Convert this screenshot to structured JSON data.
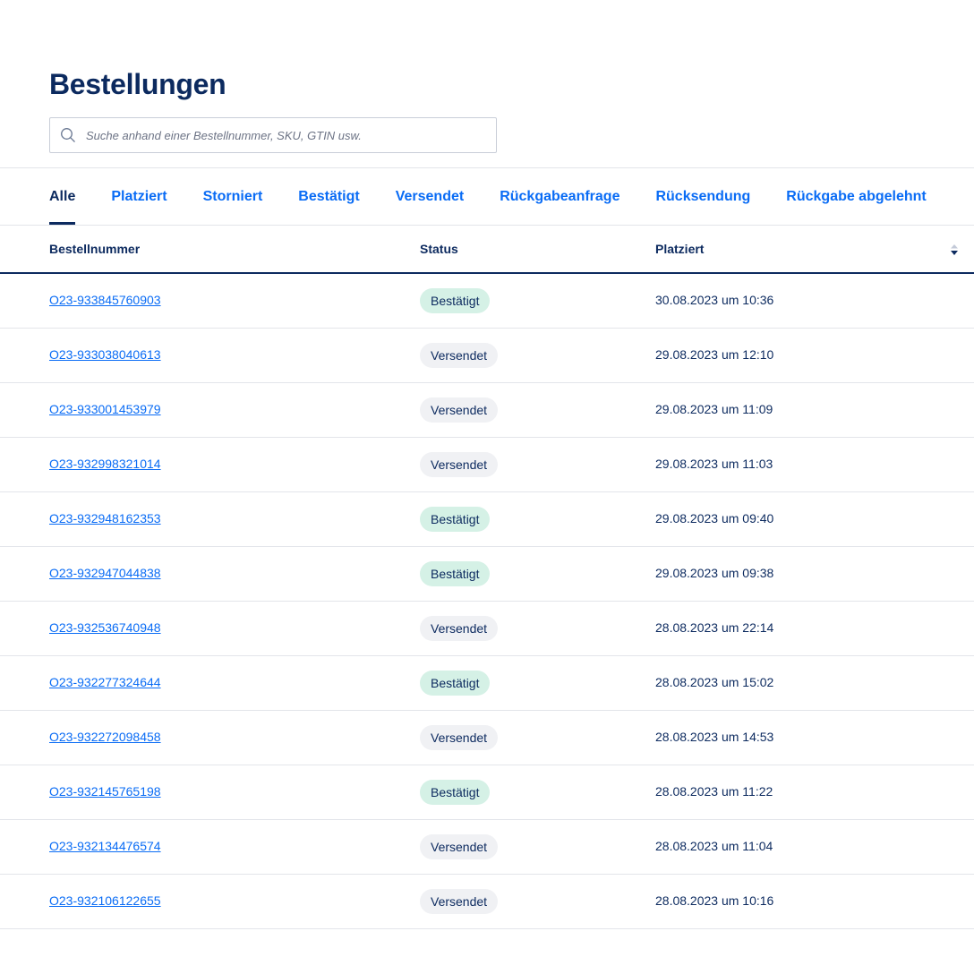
{
  "header": {
    "title": "Bestellungen"
  },
  "search": {
    "placeholder": "Suche anhand einer Bestellnummer, SKU, GTIN usw.",
    "value": ""
  },
  "tabs": [
    {
      "label": "Alle",
      "active": true
    },
    {
      "label": "Platziert"
    },
    {
      "label": "Storniert"
    },
    {
      "label": "Bestätigt"
    },
    {
      "label": "Versendet"
    },
    {
      "label": "Rückgabeanfrage"
    },
    {
      "label": "Rücksendung"
    },
    {
      "label": "Rückgabe abgelehnt"
    }
  ],
  "table": {
    "columns": [
      "Bestellnummer",
      "Status",
      "Platziert"
    ],
    "sort_icon": "sort-desc-icon",
    "status_colors": {
      "Bestätigt": "#d5f1e6",
      "Versendet": "#f0f1f4"
    },
    "rows": [
      {
        "order": "O23-933845760903",
        "status": "Bestätigt",
        "placed": "30.08.2023 um 10:36"
      },
      {
        "order": "O23-933038040613",
        "status": "Versendet",
        "placed": "29.08.2023 um 12:10"
      },
      {
        "order": "O23-933001453979",
        "status": "Versendet",
        "placed": "29.08.2023 um 11:09"
      },
      {
        "order": "O23-932998321014",
        "status": "Versendet",
        "placed": "29.08.2023 um 11:03"
      },
      {
        "order": "O23-932948162353",
        "status": "Bestätigt",
        "placed": "29.08.2023 um 09:40"
      },
      {
        "order": "O23-932947044838",
        "status": "Bestätigt",
        "placed": "29.08.2023 um 09:38"
      },
      {
        "order": "O23-932536740948",
        "status": "Versendet",
        "placed": "28.08.2023 um 22:14"
      },
      {
        "order": "O23-932277324644",
        "status": "Bestätigt",
        "placed": "28.08.2023 um 15:02"
      },
      {
        "order": "O23-932272098458",
        "status": "Versendet",
        "placed": "28.08.2023 um 14:53"
      },
      {
        "order": "O23-932145765198",
        "status": "Bestätigt",
        "placed": "28.08.2023 um 11:22"
      },
      {
        "order": "O23-932134476574",
        "status": "Versendet",
        "placed": "28.08.2023 um 11:04"
      },
      {
        "order": "O23-932106122655",
        "status": "Versendet",
        "placed": "28.08.2023 um 10:16"
      }
    ]
  }
}
